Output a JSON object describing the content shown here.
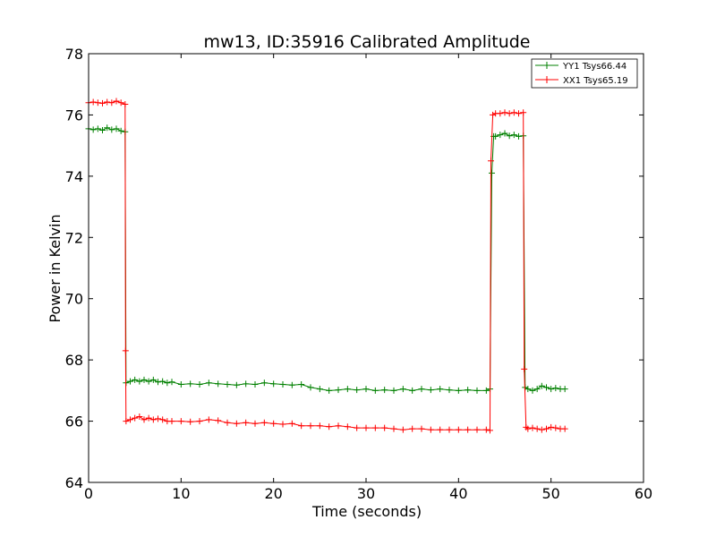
{
  "chart_data": {
    "type": "line",
    "title": "mw13, ID:35916 Calibrated Amplitude",
    "xlabel": "Time (seconds)",
    "ylabel": "Power in Kelvin",
    "xlim": [
      0,
      60
    ],
    "ylim": [
      64,
      78
    ],
    "xticks": [
      0,
      10,
      20,
      30,
      40,
      50,
      60
    ],
    "xtick_labels": [
      "0",
      "10",
      "20",
      "30",
      "40",
      "50",
      "60"
    ],
    "yticks": [
      64,
      66,
      68,
      70,
      72,
      74,
      76,
      78
    ],
    "ytick_labels": [
      "64",
      "66",
      "68",
      "70",
      "72",
      "74",
      "76",
      "78"
    ],
    "grid": false,
    "legend_position": "top-right",
    "marker": "plus",
    "series": [
      {
        "name": "YY1 Tsys66.44",
        "color": "#008000",
        "points": [
          [
            0,
            75.55
          ],
          [
            0.5,
            75.52
          ],
          [
            1,
            75.55
          ],
          [
            1.5,
            75.5
          ],
          [
            2,
            75.58
          ],
          [
            2.5,
            75.52
          ],
          [
            3,
            75.55
          ],
          [
            3.5,
            75.48
          ],
          [
            3.95,
            75.45
          ],
          [
            4.05,
            67.25
          ],
          [
            4.5,
            67.3
          ],
          [
            5,
            67.35
          ],
          [
            5.5,
            67.3
          ],
          [
            6,
            67.35
          ],
          [
            6.5,
            67.3
          ],
          [
            7,
            67.35
          ],
          [
            7.5,
            67.28
          ],
          [
            8,
            67.3
          ],
          [
            8.5,
            67.25
          ],
          [
            9,
            67.28
          ],
          [
            10,
            67.2
          ],
          [
            11,
            67.22
          ],
          [
            12,
            67.2
          ],
          [
            13,
            67.25
          ],
          [
            14,
            67.22
          ],
          [
            15,
            67.2
          ],
          [
            16,
            67.18
          ],
          [
            17,
            67.22
          ],
          [
            18,
            67.2
          ],
          [
            19,
            67.25
          ],
          [
            20,
            67.22
          ],
          [
            21,
            67.2
          ],
          [
            22,
            67.18
          ],
          [
            23,
            67.2
          ],
          [
            24,
            67.1
          ],
          [
            25,
            67.05
          ],
          [
            26,
            67.0
          ],
          [
            27,
            67.02
          ],
          [
            28,
            67.05
          ],
          [
            29,
            67.02
          ],
          [
            30,
            67.05
          ],
          [
            31,
            67.0
          ],
          [
            32,
            67.02
          ],
          [
            33,
            67.0
          ],
          [
            34,
            67.05
          ],
          [
            35,
            67.0
          ],
          [
            36,
            67.05
          ],
          [
            37,
            67.02
          ],
          [
            38,
            67.05
          ],
          [
            39,
            67.02
          ],
          [
            40,
            67.0
          ],
          [
            41,
            67.02
          ],
          [
            42,
            67.0
          ],
          [
            43,
            67.0
          ],
          [
            43.4,
            67.05
          ],
          [
            43.6,
            74.1
          ],
          [
            43.8,
            75.3
          ],
          [
            44,
            75.3
          ],
          [
            44.5,
            75.35
          ],
          [
            45,
            75.4
          ],
          [
            45.5,
            75.32
          ],
          [
            46,
            75.35
          ],
          [
            46.5,
            75.3
          ],
          [
            47,
            75.32
          ],
          [
            47.2,
            67.1
          ],
          [
            47.5,
            67.05
          ],
          [
            48,
            67.0
          ],
          [
            48.5,
            67.05
          ],
          [
            49,
            67.15
          ],
          [
            49.5,
            67.1
          ],
          [
            50,
            67.05
          ],
          [
            50.5,
            67.08
          ],
          [
            51,
            67.05
          ],
          [
            51.5,
            67.05
          ]
        ]
      },
      {
        "name": "XX1 Tsys65.19",
        "color": "#ff0000",
        "points": [
          [
            0,
            76.4
          ],
          [
            0.5,
            76.42
          ],
          [
            1,
            76.4
          ],
          [
            1.5,
            76.38
          ],
          [
            2,
            76.42
          ],
          [
            2.5,
            76.4
          ],
          [
            3,
            76.45
          ],
          [
            3.5,
            76.4
          ],
          [
            3.95,
            76.35
          ],
          [
            4.0,
            68.3
          ],
          [
            4.05,
            66.0
          ],
          [
            4.5,
            66.05
          ],
          [
            5,
            66.1
          ],
          [
            5.5,
            66.15
          ],
          [
            6,
            66.05
          ],
          [
            6.5,
            66.1
          ],
          [
            7,
            66.05
          ],
          [
            7.5,
            66.08
          ],
          [
            8,
            66.05
          ],
          [
            8.5,
            66.0
          ],
          [
            9,
            66.0
          ],
          [
            10,
            66.0
          ],
          [
            11,
            65.98
          ],
          [
            12,
            66.0
          ],
          [
            13,
            66.05
          ],
          [
            14,
            66.02
          ],
          [
            15,
            65.95
          ],
          [
            16,
            65.92
          ],
          [
            17,
            65.95
          ],
          [
            18,
            65.92
          ],
          [
            19,
            65.95
          ],
          [
            20,
            65.92
          ],
          [
            21,
            65.9
          ],
          [
            22,
            65.92
          ],
          [
            23,
            65.85
          ],
          [
            24,
            65.85
          ],
          [
            25,
            65.85
          ],
          [
            26,
            65.82
          ],
          [
            27,
            65.85
          ],
          [
            28,
            65.82
          ],
          [
            29,
            65.78
          ],
          [
            30,
            65.78
          ],
          [
            31,
            65.78
          ],
          [
            32,
            65.78
          ],
          [
            33,
            65.75
          ],
          [
            34,
            65.72
          ],
          [
            35,
            65.75
          ],
          [
            36,
            65.75
          ],
          [
            37,
            65.72
          ],
          [
            38,
            65.72
          ],
          [
            39,
            65.72
          ],
          [
            40,
            65.72
          ],
          [
            41,
            65.72
          ],
          [
            42,
            65.72
          ],
          [
            43,
            65.72
          ],
          [
            43.4,
            65.7
          ],
          [
            43.5,
            74.5
          ],
          [
            43.7,
            76.0
          ],
          [
            44,
            76.05
          ],
          [
            44.5,
            76.05
          ],
          [
            45,
            76.08
          ],
          [
            45.5,
            76.05
          ],
          [
            46,
            76.08
          ],
          [
            46.5,
            76.05
          ],
          [
            47,
            76.08
          ],
          [
            47.1,
            67.7
          ],
          [
            47.3,
            65.8
          ],
          [
            47.5,
            65.75
          ],
          [
            48,
            65.78
          ],
          [
            48.5,
            65.75
          ],
          [
            49,
            65.72
          ],
          [
            49.5,
            65.75
          ],
          [
            50,
            65.8
          ],
          [
            50.5,
            65.78
          ],
          [
            51,
            65.75
          ],
          [
            51.5,
            65.75
          ]
        ]
      }
    ]
  }
}
